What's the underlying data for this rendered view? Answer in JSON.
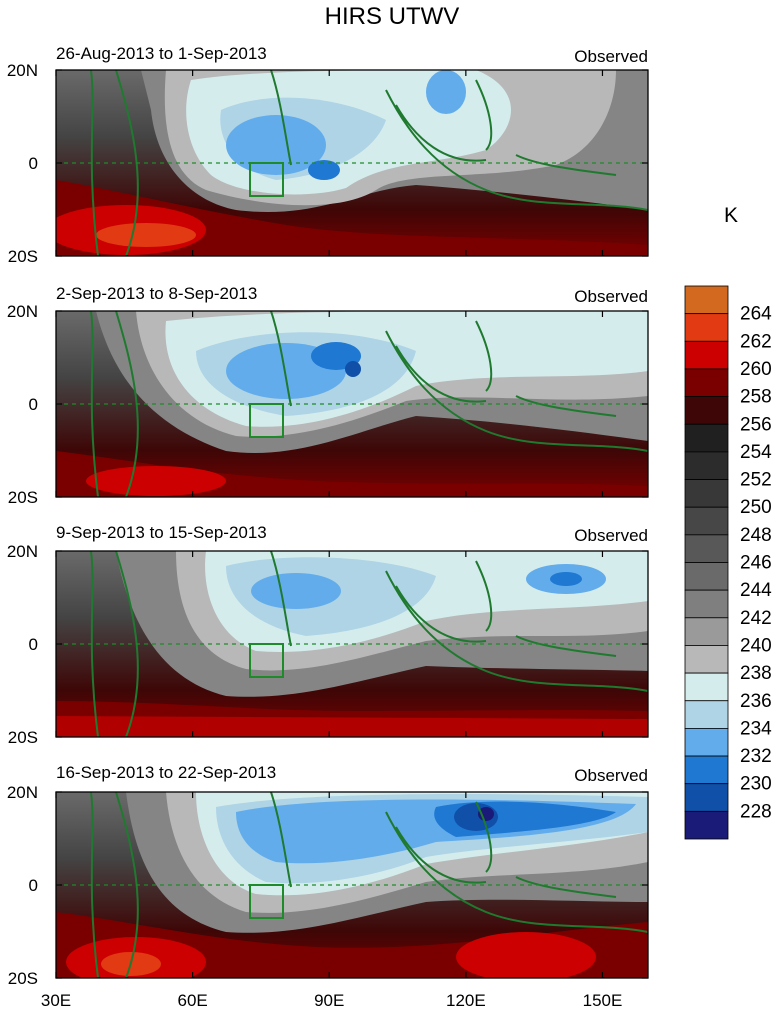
{
  "title": "HIRS UTWV",
  "units_label": "K",
  "panels": [
    {
      "period": "26-Aug-2013 to 1-Sep-2013",
      "tag": "Observed"
    },
    {
      "period": "2-Sep-2013 to 8-Sep-2013",
      "tag": "Observed"
    },
    {
      "period": "9-Sep-2013 to 15-Sep-2013",
      "tag": "Observed"
    },
    {
      "period": "16-Sep-2013 to 22-Sep-2013",
      "tag": "Observed"
    }
  ],
  "y_ticks": [
    "20N",
    "0",
    "20S"
  ],
  "x_ticks": [
    "30E",
    "60E",
    "90E",
    "120E",
    "150E"
  ],
  "colorbar": {
    "labels": [
      "264",
      "262",
      "260",
      "258",
      "256",
      "254",
      "252",
      "250",
      "248",
      "246",
      "244",
      "242",
      "240",
      "238",
      "236",
      "234",
      "232",
      "230",
      "228"
    ],
    "colors": [
      "#d2691e",
      "#e23a12",
      "#cc0000",
      "#7a0000",
      "#3e0606",
      "#202020",
      "#2c2c2c",
      "#383838",
      "#474747",
      "#585858",
      "#6a6a6a",
      "#7f7f7f",
      "#9a9a9a",
      "#b8b8b8",
      "#d5eced",
      "#aed4e6",
      "#62acec",
      "#1f78d1",
      "#1050a8",
      "#1a1a78"
    ]
  }
}
